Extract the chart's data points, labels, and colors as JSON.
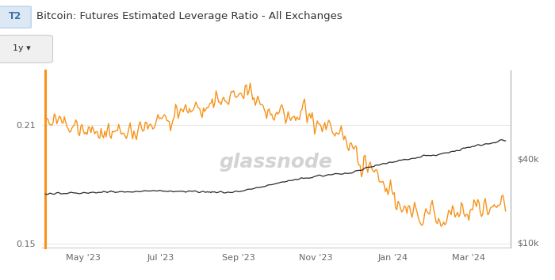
{
  "title": "Bitcoin: Futures Estimated Leverage Ratio - All Exchanges",
  "title_tag": "T2",
  "bg_color": "#ffffff",
  "plot_bg_color": "#ffffff",
  "grid_color": "#e8e8e8",
  "orange_color": "#f7931a",
  "black_color": "#2a2a2a",
  "watermark": "glassnode",
  "left_ylim": [
    0.148,
    0.238
  ],
  "right_ylim": [
    8000,
    72000
  ],
  "left_yticks": [
    0.15,
    0.21
  ],
  "right_yticks": [
    10000,
    40000
  ],
  "right_ytick_labels": [
    "$10k",
    "$40k"
  ],
  "x_tick_labels": [
    "May '23",
    "Jul '23",
    "Sep '23",
    "Nov '23",
    "Jan '24",
    "Mar '24"
  ],
  "x_tick_positions": [
    30,
    91,
    153,
    214,
    275,
    335
  ],
  "timespan_days": 365,
  "button_label": "1y"
}
